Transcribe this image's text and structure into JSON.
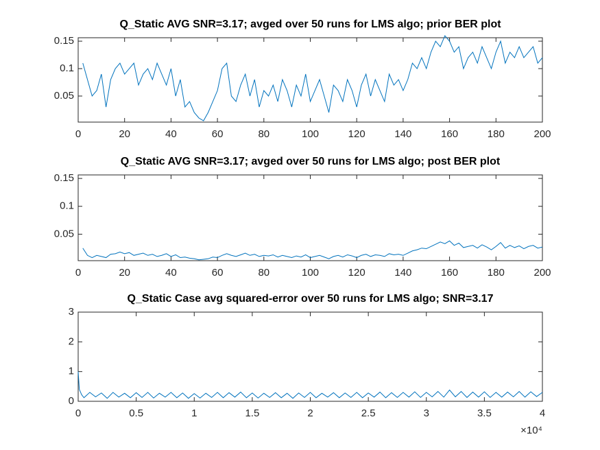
{
  "chart_data": [
    {
      "type": "line",
      "title": "Q_Static AVG SNR=3.17; avged over 50 runs for LMS algo; prior BER plot",
      "x": [
        2,
        4,
        6,
        8,
        10,
        12,
        14,
        16,
        18,
        20,
        22,
        24,
        26,
        28,
        30,
        32,
        34,
        36,
        38,
        40,
        42,
        44,
        46,
        48,
        50,
        52,
        54,
        56,
        58,
        60,
        62,
        64,
        66,
        68,
        70,
        72,
        74,
        76,
        78,
        80,
        82,
        84,
        86,
        88,
        90,
        92,
        94,
        96,
        98,
        100,
        102,
        104,
        106,
        108,
        110,
        112,
        114,
        116,
        118,
        120,
        122,
        124,
        126,
        128,
        130,
        132,
        134,
        136,
        138,
        140,
        142,
        144,
        146,
        148,
        150,
        152,
        154,
        156,
        158,
        160,
        162,
        164,
        166,
        168,
        170,
        172,
        174,
        176,
        178,
        180,
        182,
        184,
        186,
        188,
        190,
        192,
        194,
        196,
        198,
        200
      ],
      "series": [
        {
          "color": "#0072bd",
          "values": [
            0.11,
            0.08,
            0.05,
            0.06,
            0.09,
            0.03,
            0.08,
            0.1,
            0.11,
            0.09,
            0.1,
            0.11,
            0.07,
            0.09,
            0.1,
            0.08,
            0.11,
            0.09,
            0.07,
            0.1,
            0.05,
            0.08,
            0.03,
            0.04,
            0.02,
            0.01,
            0.005,
            0.02,
            0.04,
            0.06,
            0.1,
            0.11,
            0.05,
            0.04,
            0.07,
            0.09,
            0.05,
            0.08,
            0.03,
            0.06,
            0.05,
            0.07,
            0.04,
            0.08,
            0.06,
            0.03,
            0.07,
            0.05,
            0.09,
            0.04,
            0.06,
            0.08,
            0.05,
            0.02,
            0.07,
            0.06,
            0.04,
            0.08,
            0.06,
            0.03,
            0.07,
            0.09,
            0.05,
            0.08,
            0.06,
            0.04,
            0.09,
            0.07,
            0.08,
            0.06,
            0.08,
            0.11,
            0.1,
            0.12,
            0.1,
            0.13,
            0.15,
            0.14,
            0.16,
            0.15,
            0.13,
            0.14,
            0.1,
            0.12,
            0.13,
            0.11,
            0.14,
            0.12,
            0.1,
            0.13,
            0.15,
            0.11,
            0.13,
            0.12,
            0.14,
            0.12,
            0.13,
            0.14,
            0.11,
            0.12
          ]
        }
      ],
      "xlim": [
        0,
        200
      ],
      "xticks": [
        0,
        20,
        40,
        60,
        80,
        100,
        120,
        140,
        160,
        180,
        200
      ],
      "ylim": [
        0.0025,
        0.1563
      ],
      "yticks": [
        0.05,
        0.1,
        0.15
      ]
    },
    {
      "type": "line",
      "title": "Q_Static AVG SNR=3.17; avged over 50 runs for LMS algo; post BER plot",
      "x": [
        2,
        4,
        6,
        8,
        10,
        12,
        14,
        16,
        18,
        20,
        22,
        24,
        26,
        28,
        30,
        32,
        34,
        36,
        38,
        40,
        42,
        44,
        46,
        48,
        50,
        52,
        54,
        56,
        58,
        60,
        62,
        64,
        66,
        68,
        70,
        72,
        74,
        76,
        78,
        80,
        82,
        84,
        86,
        88,
        90,
        92,
        94,
        96,
        98,
        100,
        102,
        104,
        106,
        108,
        110,
        112,
        114,
        116,
        118,
        120,
        122,
        124,
        126,
        128,
        130,
        132,
        134,
        136,
        138,
        140,
        142,
        144,
        146,
        148,
        150,
        152,
        154,
        156,
        158,
        160,
        162,
        164,
        166,
        168,
        170,
        172,
        174,
        176,
        178,
        180,
        182,
        184,
        186,
        188,
        190,
        192,
        194,
        196,
        198,
        200
      ],
      "series": [
        {
          "color": "#0072bd",
          "values": [
            0.025,
            0.012,
            0.008,
            0.012,
            0.01,
            0.008,
            0.014,
            0.015,
            0.018,
            0.015,
            0.017,
            0.012,
            0.014,
            0.016,
            0.012,
            0.014,
            0.01,
            0.012,
            0.015,
            0.01,
            0.013,
            0.008,
            0.009,
            0.007,
            0.006,
            0.004,
            0.005,
            0.006,
            0.009,
            0.008,
            0.012,
            0.015,
            0.012,
            0.01,
            0.013,
            0.016,
            0.012,
            0.014,
            0.01,
            0.012,
            0.011,
            0.013,
            0.009,
            0.012,
            0.01,
            0.008,
            0.011,
            0.009,
            0.013,
            0.008,
            0.01,
            0.012,
            0.009,
            0.006,
            0.01,
            0.012,
            0.009,
            0.013,
            0.011,
            0.008,
            0.012,
            0.014,
            0.01,
            0.013,
            0.012,
            0.01,
            0.015,
            0.013,
            0.014,
            0.012,
            0.016,
            0.02,
            0.022,
            0.025,
            0.024,
            0.028,
            0.032,
            0.036,
            0.033,
            0.038,
            0.03,
            0.034,
            0.026,
            0.028,
            0.03,
            0.025,
            0.031,
            0.027,
            0.022,
            0.028,
            0.035,
            0.025,
            0.03,
            0.026,
            0.029,
            0.024,
            0.028,
            0.03,
            0.025,
            0.027
          ]
        }
      ],
      "xlim": [
        0,
        200
      ],
      "xticks": [
        0,
        20,
        40,
        60,
        80,
        100,
        120,
        140,
        160,
        180,
        200
      ],
      "ylim": [
        0.0025,
        0.1563
      ],
      "yticks": [
        0.05,
        0.1,
        0.15
      ]
    },
    {
      "type": "line",
      "title": "Q_Static Case avg squared-error over 50 runs for LMS algo; SNR=3.17",
      "x": [
        0,
        100,
        300,
        500,
        1000,
        1500,
        2000,
        2500,
        3000,
        3500,
        4000,
        4500,
        5000,
        5500,
        6000,
        6500,
        7000,
        7500,
        8000,
        8500,
        9000,
        9500,
        10000,
        10500,
        11000,
        11500,
        12000,
        12500,
        13000,
        13500,
        14000,
        14500,
        15000,
        15500,
        16000,
        16500,
        17000,
        17500,
        18000,
        18500,
        19000,
        19500,
        20000,
        20500,
        21000,
        21500,
        22000,
        22500,
        23000,
        23500,
        24000,
        24500,
        25000,
        25500,
        26000,
        26500,
        27000,
        27500,
        28000,
        28500,
        29000,
        29500,
        30000,
        30500,
        31000,
        31500,
        32000,
        32500,
        33000,
        33500,
        34000,
        34500,
        35000,
        35500,
        36000,
        36500,
        37000,
        37500,
        38000,
        38500,
        39000,
        39500,
        40000
      ],
      "series": [
        {
          "color": "#0072bd",
          "values": [
            1.0,
            0.4,
            0.22,
            0.12,
            0.3,
            0.15,
            0.28,
            0.1,
            0.3,
            0.14,
            0.27,
            0.12,
            0.29,
            0.13,
            0.3,
            0.11,
            0.27,
            0.14,
            0.3,
            0.12,
            0.28,
            0.1,
            0.26,
            0.11,
            0.27,
            0.13,
            0.3,
            0.12,
            0.29,
            0.14,
            0.31,
            0.12,
            0.28,
            0.11,
            0.27,
            0.13,
            0.29,
            0.12,
            0.27,
            0.1,
            0.28,
            0.13,
            0.3,
            0.12,
            0.27,
            0.14,
            0.29,
            0.12,
            0.28,
            0.13,
            0.3,
            0.12,
            0.28,
            0.14,
            0.31,
            0.12,
            0.29,
            0.13,
            0.3,
            0.14,
            0.32,
            0.13,
            0.3,
            0.15,
            0.33,
            0.14,
            0.38,
            0.15,
            0.33,
            0.13,
            0.31,
            0.14,
            0.32,
            0.13,
            0.3,
            0.14,
            0.31,
            0.15,
            0.33,
            0.14,
            0.32,
            0.16,
            0.3
          ]
        }
      ],
      "xlim": [
        0,
        40000
      ],
      "xticks": [
        {
          "value": 0,
          "label": "0"
        },
        {
          "value": 5000,
          "label": "0.5"
        },
        {
          "value": 10000,
          "label": "1"
        },
        {
          "value": 15000,
          "label": "1.5"
        },
        {
          "value": 20000,
          "label": "2"
        },
        {
          "value": 25000,
          "label": "2.5"
        },
        {
          "value": 30000,
          "label": "3"
        },
        {
          "value": 35000,
          "label": "3.5"
        },
        {
          "value": 40000,
          "label": "4"
        }
      ],
      "x_exponent": "×10⁴",
      "ylim": [
        0,
        3
      ],
      "yticks": [
        0,
        1,
        2,
        3
      ]
    }
  ]
}
